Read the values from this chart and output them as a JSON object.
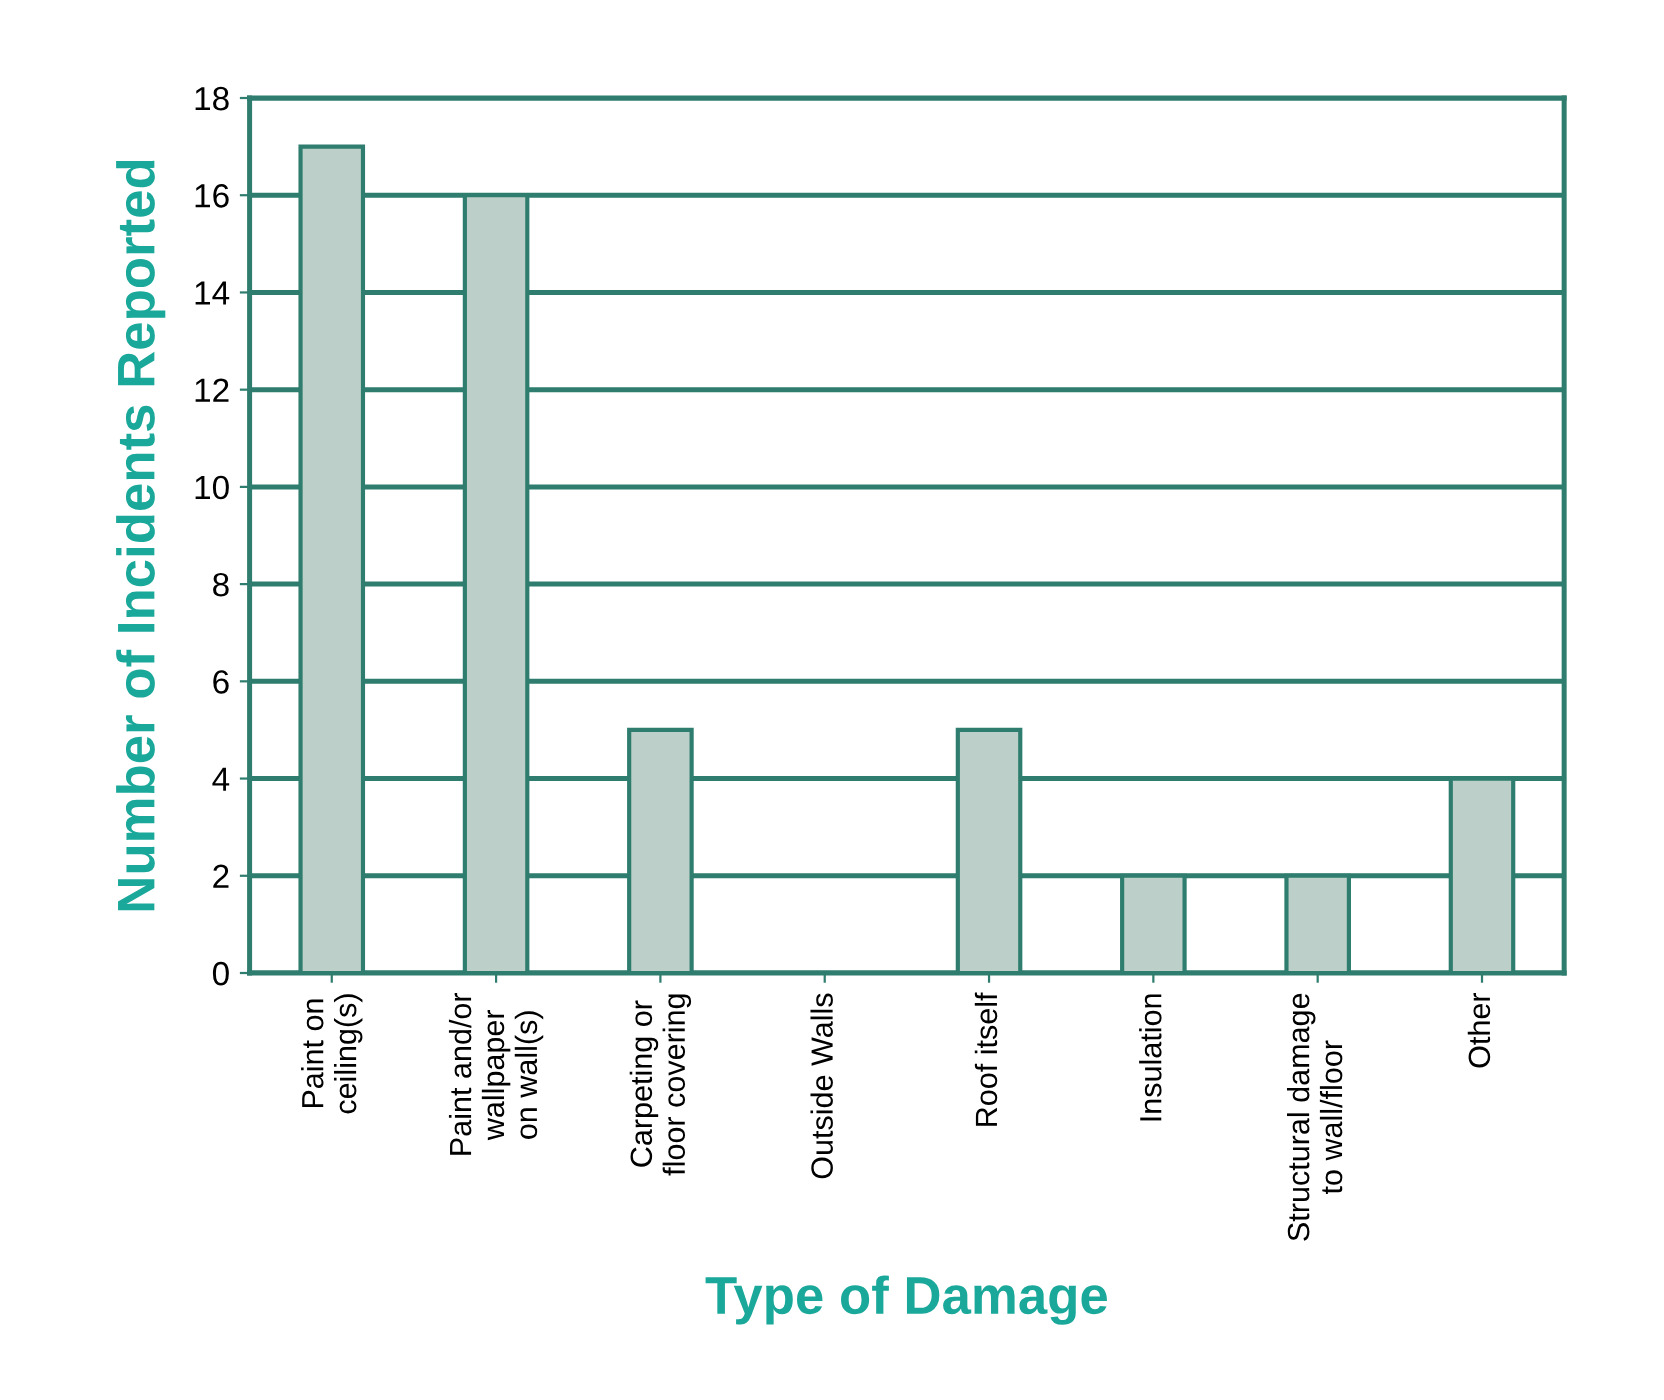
{
  "chart_data": {
    "type": "bar",
    "xlabel": "Type of Damage",
    "ylabel": "Number of Incidents Reported",
    "categories": [
      "Paint on\nceiling(s)",
      "Paint and/or\nwallpaper\non wall(s)",
      "Carpeting or\nfloor covering",
      "Outside Walls",
      "Roof itself",
      "Insulation",
      "Structural damage\nto wall/floor",
      "Other"
    ],
    "values": [
      17,
      16,
      5,
      0,
      5,
      2,
      2,
      4
    ],
    "color": "#bccfc8",
    "ylim": [
      0,
      18
    ],
    "yticks": [
      0,
      2,
      4,
      6,
      8,
      10,
      12,
      14,
      16,
      18
    ],
    "grid": "y"
  }
}
